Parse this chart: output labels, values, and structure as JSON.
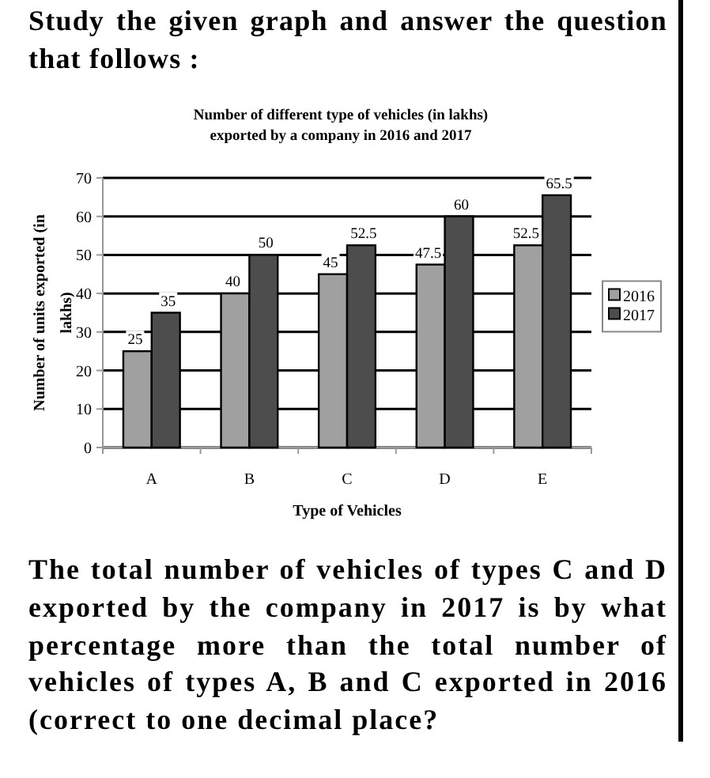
{
  "chart_data": {
    "type": "bar",
    "title": "Number of different type of vehicles (in lakhs) exported by a company in 2016 and 2017",
    "xlabel": "Type of Vehicles",
    "ylabel": "Number of units exported (in lakhs)",
    "categories": [
      "A",
      "B",
      "C",
      "D",
      "E"
    ],
    "series": [
      {
        "name": "2016",
        "color": "#a0a0a0",
        "values": [
          25,
          40,
          45,
          47.5,
          52.5
        ]
      },
      {
        "name": "2017",
        "color": "#4d4d4d",
        "values": [
          35,
          50,
          52.5,
          60,
          65.5
        ]
      }
    ],
    "ylim": [
      0,
      70
    ],
    "yticks": [
      0,
      10,
      20,
      30,
      40,
      50,
      60,
      70
    ],
    "grid": "y",
    "legend": "right",
    "data_labels": true,
    "annotations": [
      "Study the given graph and answer the question that follows :",
      "The total number of vehicles of types C and D exported by the company in 2017 is by what percentage more than the total number of vehicles of types A, B and C exported in 2016 (correct to one decimal place?"
    ]
  }
}
